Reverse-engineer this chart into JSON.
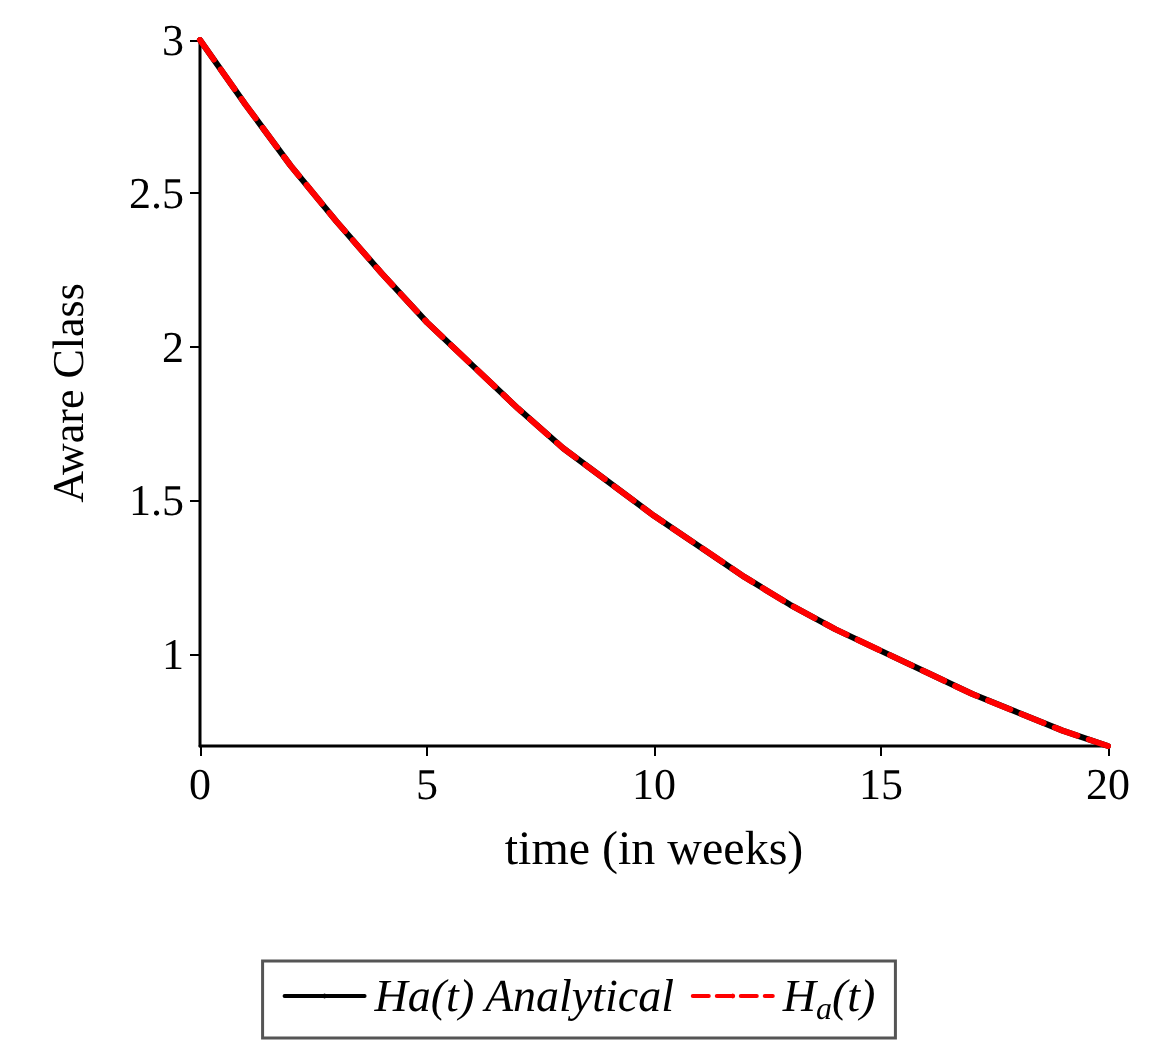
{
  "chart_data": {
    "type": "line",
    "xlabel": "time (in weeks)",
    "ylabel": "Aware Class",
    "x": [
      0,
      1,
      2,
      3,
      4,
      5,
      6,
      7,
      8,
      9,
      10,
      11,
      12,
      13,
      14,
      15,
      16,
      17,
      18,
      19,
      20
    ],
    "series": [
      {
        "name": "Ha(t) Analytical",
        "color": "#000000",
        "line_style": "solid",
        "values": [
          3.0,
          2.79,
          2.59,
          2.41,
          2.24,
          2.08,
          1.94,
          1.8,
          1.67,
          1.56,
          1.45,
          1.35,
          1.25,
          1.16,
          1.08,
          1.01,
          0.94,
          0.87,
          0.81,
          0.75,
          0.7
        ]
      },
      {
        "name": "H$_{a}$(t)",
        "color": "#ff0000",
        "line_style": "dashed",
        "values": [
          3.0,
          2.79,
          2.59,
          2.41,
          2.24,
          2.08,
          1.94,
          1.8,
          1.67,
          1.56,
          1.45,
          1.35,
          1.25,
          1.16,
          1.08,
          1.01,
          0.94,
          0.87,
          0.81,
          0.75,
          0.7
        ]
      }
    ],
    "xlim": [
      0,
      20
    ],
    "xticks": [
      0,
      5,
      10,
      15,
      20
    ],
    "ylim": [
      0.7,
      3
    ],
    "yticks": [
      1,
      1.5,
      2,
      2.5,
      3
    ],
    "grid": false,
    "legend": "bottom",
    "marker": "none"
  }
}
